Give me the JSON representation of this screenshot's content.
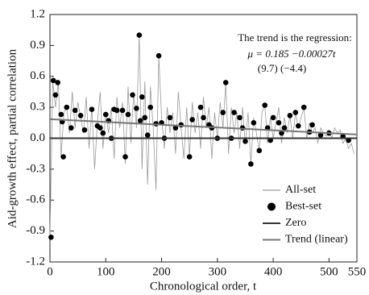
{
  "chart_data": {
    "type": "line",
    "annotations": [
      "The trend is the regression:",
      "μ = 0.185 −0.00027t",
      "(9.7)   (−4.4)"
    ],
    "xlabel": "Chronological order, t",
    "ylabel": "Aid-growth effect, partial correlation",
    "xlim": [
      0,
      550
    ],
    "ylim": [
      -1.2,
      1.2
    ],
    "xticks": [
      0,
      100,
      200,
      300,
      400,
      500,
      550
    ],
    "yticks": [
      -1.2,
      -0.9,
      -0.6,
      -0.3,
      {
        "value": 0,
        "label": "0.0"
      },
      0.3,
      0.6,
      0.9,
      1.2
    ],
    "legend": "lower right",
    "series": [
      {
        "name": "All-set",
        "kind": "line",
        "color": "#9a9a9a",
        "x": [
          0,
          5,
          10,
          15,
          20,
          25,
          30,
          35,
          40,
          45,
          50,
          55,
          60,
          65,
          70,
          75,
          80,
          85,
          90,
          95,
          100,
          105,
          110,
          115,
          120,
          125,
          130,
          135,
          140,
          145,
          150,
          155,
          160,
          165,
          170,
          175,
          180,
          185,
          190,
          195,
          200,
          205,
          210,
          215,
          220,
          225,
          230,
          235,
          240,
          245,
          250,
          255,
          260,
          265,
          270,
          275,
          280,
          285,
          290,
          295,
          300,
          305,
          310,
          315,
          320,
          325,
          330,
          335,
          340,
          345,
          350,
          355,
          360,
          365,
          370,
          375,
          380,
          385,
          390,
          395,
          400,
          405,
          410,
          415,
          420,
          425,
          430,
          435,
          440,
          445,
          450,
          455,
          460,
          465,
          470,
          475,
          480,
          485,
          490,
          495,
          500,
          505,
          510,
          515,
          520,
          525,
          530,
          535,
          540,
          545
        ],
        "values": [
          -0.96,
          0.55,
          0.3,
          0.55,
          -0.18,
          0.25,
          0.3,
          0.05,
          0.45,
          0.1,
          0.35,
          0.2,
          0.05,
          0.4,
          -0.1,
          0.3,
          -0.3,
          0.15,
          0.45,
          -0.1,
          0.25,
          0.05,
          0.3,
          -0.2,
          0.4,
          0.1,
          0.35,
          -0.25,
          0.5,
          -0.05,
          0.45,
          0.1,
          1.0,
          -0.3,
          0.55,
          -0.45,
          0.5,
          0.1,
          -0.5,
          0.8,
          0.2,
          -0.1,
          0.3,
          0.05,
          0.25,
          -0.15,
          0.45,
          0.1,
          -0.2,
          0.3,
          -0.18,
          0.35,
          0.05,
          0.25,
          -0.1,
          0.4,
          0.1,
          0.3,
          -0.2,
          0.25,
          0.0,
          0.35,
          0.1,
          0.54,
          -0.15,
          0.3,
          0.05,
          0.25,
          -0.1,
          0.3,
          -0.05,
          0.25,
          -0.25,
          0.2,
          0.05,
          -0.12,
          0.25,
          0.32,
          -0.05,
          0.2,
          0.0,
          0.15,
          0.3,
          -0.05,
          0.2,
          0.05,
          0.22,
          0.0,
          0.25,
          0.1,
          0.2,
          0.3,
          0.0,
          0.15,
          0.05,
          0.1,
          -0.05,
          0.1,
          0.05,
          0.02,
          0.08,
          0.0,
          0.1,
          0.05,
          0.08,
          -0.05,
          0.0,
          -0.1,
          -0.05,
          -0.15
        ]
      },
      {
        "name": "Best-set",
        "kind": "scatter",
        "color": "#000000",
        "x": [
          2,
          6,
          10,
          14,
          20,
          22,
          24,
          30,
          38,
          45,
          55,
          62,
          75,
          85,
          90,
          95,
          100,
          105,
          110,
          115,
          120,
          130,
          135,
          140,
          148,
          155,
          160,
          162,
          165,
          170,
          175,
          180,
          190,
          195,
          200,
          205,
          215,
          225,
          235,
          250,
          255,
          270,
          275,
          285,
          290,
          300,
          310,
          315,
          325,
          330,
          340,
          345,
          350,
          360,
          365,
          375,
          385,
          390,
          395,
          400,
          410,
          415,
          420,
          430,
          440,
          445,
          455,
          465,
          470,
          485,
          500,
          525,
          535
        ],
        "values": [
          -0.96,
          0.56,
          0.42,
          0.54,
          0.23,
          0.16,
          -0.18,
          0.3,
          0.1,
          0.27,
          0.22,
          0.08,
          0.28,
          0.12,
          0.1,
          0.05,
          0.23,
          0.17,
          0.0,
          0.28,
          0.27,
          0.27,
          -0.18,
          0.23,
          0.42,
          0.29,
          1.0,
          0.17,
          0.4,
          0.2,
          0.03,
          0.3,
          0.14,
          0.8,
          0.15,
          0.0,
          0.2,
          0.1,
          0.13,
          -0.18,
          0.18,
          0.3,
          0.2,
          0.13,
          0.1,
          0.0,
          0.25,
          0.54,
          0.0,
          0.25,
          0.2,
          0.1,
          -0.03,
          -0.25,
          0.15,
          -0.12,
          0.32,
          0.1,
          -0.02,
          0.2,
          0.15,
          0.05,
          0.1,
          0.22,
          0.25,
          0.12,
          0.3,
          0.06,
          0.13,
          0.03,
          0.05,
          0.02,
          -0.02
        ]
      },
      {
        "name": "Zero",
        "kind": "line",
        "color": "#333333",
        "x": [
          0,
          550
        ],
        "values": [
          0,
          0
        ]
      },
      {
        "name": "Trend (linear)",
        "kind": "line",
        "color": "#777777",
        "x": [
          0,
          550
        ],
        "values": [
          0.185,
          0.0365
        ]
      }
    ]
  }
}
